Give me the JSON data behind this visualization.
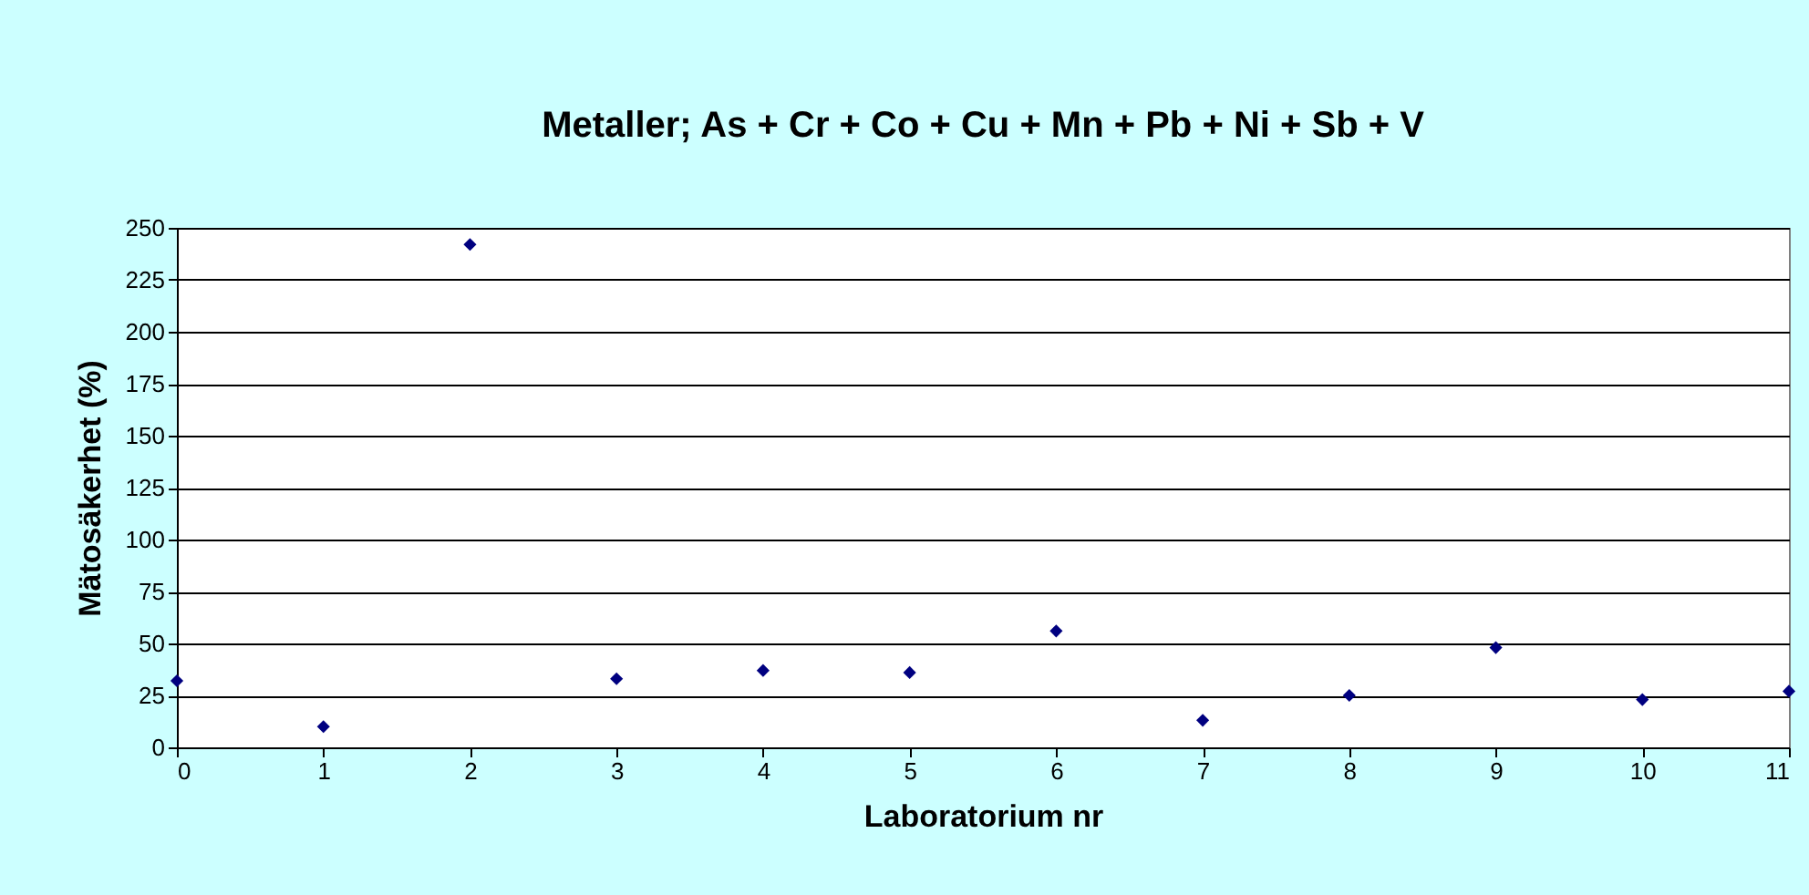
{
  "chart_data": {
    "type": "scatter",
    "title": "Metaller; As + Cr + Co + Cu + Mn + Pb + Ni + Sb + V",
    "xlabel": "Laboratorium nr",
    "ylabel": "Mätosäkerhet (%)",
    "x": [
      0,
      1,
      2,
      3,
      4,
      5,
      6,
      7,
      8,
      9,
      10,
      11
    ],
    "series": [
      {
        "color": "#000080",
        "values": [
          32,
          10,
          242,
          33,
          37,
          36,
          56,
          13,
          25,
          48,
          23,
          27
        ]
      }
    ],
    "xlim": [
      0,
      11
    ],
    "xticks": [
      0,
      1,
      2,
      3,
      4,
      5,
      6,
      7,
      8,
      9,
      10,
      11
    ],
    "ylim": [
      0,
      250
    ],
    "yticks": [
      0,
      25,
      50,
      75,
      100,
      125,
      150,
      175,
      200,
      225,
      250
    ],
    "grid": "y",
    "marker": "diamond",
    "legend": false
  }
}
